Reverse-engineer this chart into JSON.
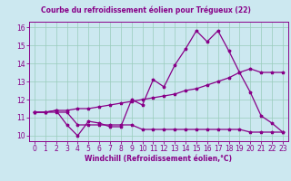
{
  "title": "Courbe du refroidissement éolien pour Trégueux (22)",
  "xlabel": "Windchill (Refroidissement éolien,°C)",
  "bg_color": "#cce8f0",
  "line_color": "#880088",
  "grid_color": "#99ccbb",
  "xlim": [
    -0.5,
    23.5
  ],
  "ylim": [
    9.7,
    16.3
  ],
  "xticks": [
    0,
    1,
    2,
    3,
    4,
    5,
    6,
    7,
    8,
    9,
    10,
    11,
    12,
    13,
    14,
    15,
    16,
    17,
    18,
    19,
    20,
    21,
    22,
    23
  ],
  "yticks": [
    10,
    11,
    12,
    13,
    14,
    15,
    16
  ],
  "line1_x": [
    0,
    1,
    2,
    3,
    4,
    5,
    6,
    7,
    8,
    9,
    10,
    11,
    12,
    13,
    14,
    15,
    16,
    17,
    18,
    19,
    20,
    21,
    22,
    23
  ],
  "line1_y": [
    11.3,
    11.3,
    11.4,
    10.6,
    10.0,
    10.8,
    10.7,
    10.5,
    10.5,
    12.0,
    11.7,
    13.1,
    12.7,
    13.9,
    14.8,
    15.8,
    15.2,
    15.8,
    14.7,
    13.5,
    12.4,
    11.1,
    10.7,
    10.2
  ],
  "line2_x": [
    0,
    1,
    2,
    3,
    4,
    5,
    6,
    7,
    8,
    9,
    10,
    11,
    12,
    13,
    14,
    15,
    16,
    17,
    18,
    19,
    20,
    21,
    22,
    23
  ],
  "line2_y": [
    11.3,
    11.3,
    11.4,
    11.4,
    11.5,
    11.5,
    11.6,
    11.7,
    11.8,
    11.9,
    12.0,
    12.1,
    12.2,
    12.3,
    12.5,
    12.6,
    12.8,
    13.0,
    13.2,
    13.5,
    13.7,
    13.5,
    13.5,
    13.5
  ],
  "line3_x": [
    0,
    1,
    2,
    3,
    4,
    5,
    6,
    7,
    8,
    9,
    10,
    11,
    12,
    13,
    14,
    15,
    16,
    17,
    18,
    19,
    20,
    21,
    22,
    23
  ],
  "line3_y": [
    11.3,
    11.3,
    11.3,
    11.3,
    10.6,
    10.6,
    10.6,
    10.6,
    10.6,
    10.6,
    10.35,
    10.35,
    10.35,
    10.35,
    10.35,
    10.35,
    10.35,
    10.35,
    10.35,
    10.35,
    10.2,
    10.2,
    10.2,
    10.2
  ],
  "tick_fontsize": 5.5,
  "xlabel_fontsize": 5.5,
  "title_fontsize": 5.5
}
